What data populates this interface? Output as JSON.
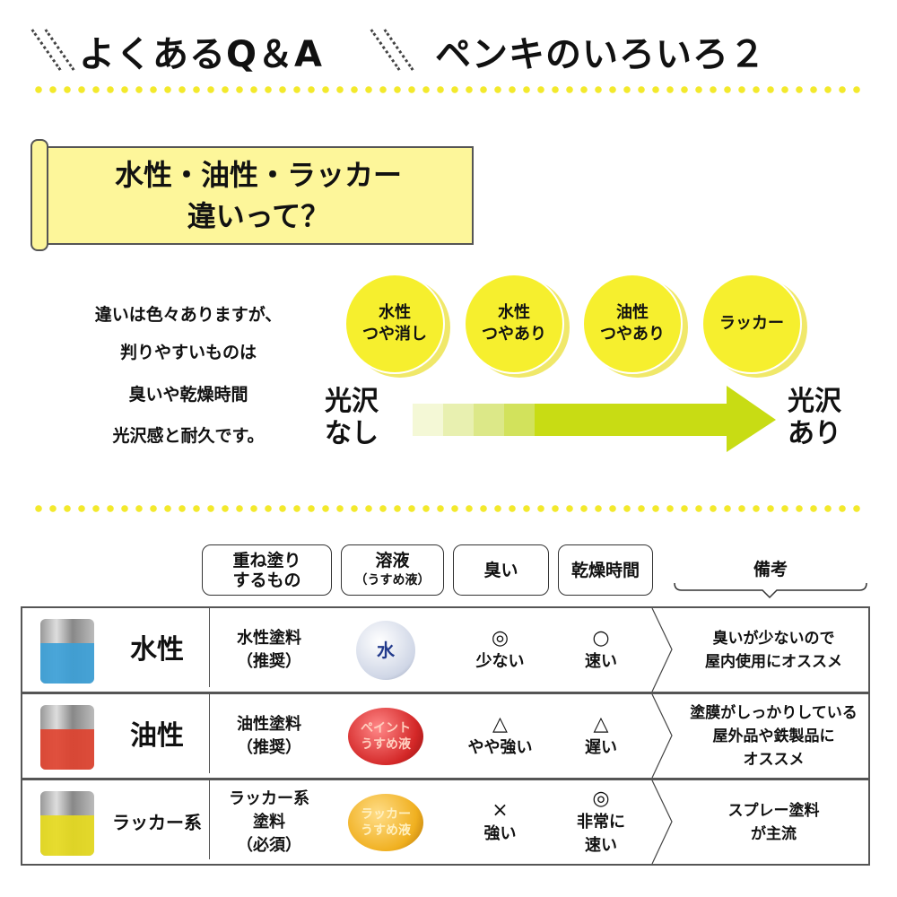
{
  "header": {
    "left": "よくあるQ＆A",
    "right": "ペンキのいろいろ２"
  },
  "banner": {
    "line1": "水性・油性・ラッカー",
    "line2": "違いって？"
  },
  "intro": [
    "違いは色々ありますが、",
    "判りやすいものは",
    "臭いや乾燥時間",
    "光沢感と耐久です。"
  ],
  "scale": {
    "left": [
      "光沢",
      "なし"
    ],
    "right": [
      "光沢",
      "あり"
    ],
    "circles": [
      [
        "水性",
        "つや消し"
      ],
      [
        "水性",
        "つやあり"
      ],
      [
        "油性",
        "つやあり"
      ],
      [
        "ラッカー"
      ]
    ]
  },
  "colors": {
    "yellow": "#f6ef2e",
    "arrow": "#c8dc14",
    "water": "#3aa0d8",
    "oil": "#e0402c",
    "lacquer": "#e8dc1c"
  },
  "table": {
    "headers": [
      [
        "重ね塗り",
        "するもの"
      ],
      [
        "溶液",
        "（うすめ液）"
      ],
      [
        "臭い"
      ],
      [
        "乾燥時間"
      ],
      [
        "備考"
      ]
    ],
    "rows": [
      {
        "name": "水性",
        "paint": [
          "水性塗料",
          "（推奨）"
        ],
        "solvent": [
          "水"
        ],
        "smell_mark": "◎",
        "smell": "少ない",
        "dry_mark": "○",
        "dry": [
          "速い"
        ],
        "note": [
          "臭いが少ないので",
          "屋内使用にオススメ"
        ]
      },
      {
        "name": "油性",
        "paint": [
          "油性塗料",
          "（推奨）"
        ],
        "solvent": [
          "ペイント",
          "うすめ液"
        ],
        "smell_mark": "△",
        "smell": "やや強い",
        "dry_mark": "△",
        "dry": [
          "遅い"
        ],
        "note": [
          "塗膜がしっかりしている",
          "屋外品や鉄製品に",
          "オススメ"
        ]
      },
      {
        "name": "ラッカー系",
        "paint": [
          "ラッカー系",
          "塗料",
          "（必須）"
        ],
        "solvent": [
          "ラッカー",
          "うすめ液"
        ],
        "smell_mark": "×",
        "smell": "強い",
        "dry_mark": "◎",
        "dry": [
          "非常に",
          "速い"
        ],
        "note": [
          "スプレー塗料",
          "が主流"
        ]
      }
    ]
  }
}
